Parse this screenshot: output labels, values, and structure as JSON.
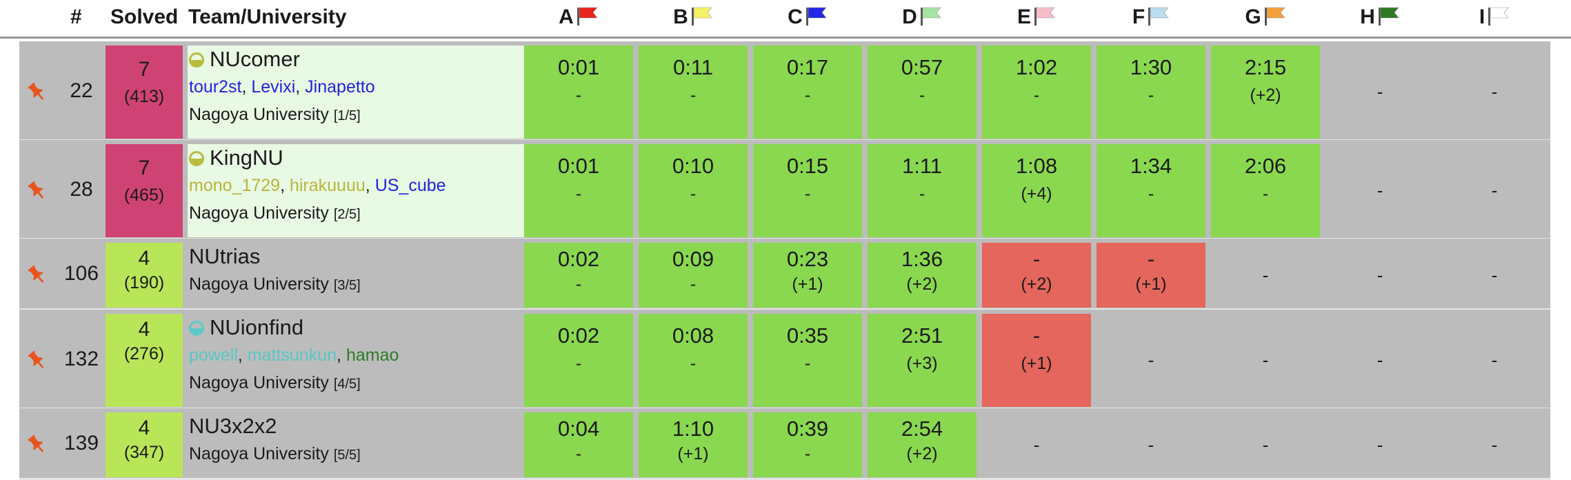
{
  "header": {
    "rank_label": "#",
    "solved_label": "Solved",
    "team_label": "Team/University",
    "problems": [
      {
        "letter": "A",
        "flag_color": "#e8241c"
      },
      {
        "letter": "B",
        "flag_color": "#f5f264"
      },
      {
        "letter": "C",
        "flag_color": "#2426e6"
      },
      {
        "letter": "D",
        "flag_color": "#a6e3a0"
      },
      {
        "letter": "E",
        "flag_color": "#f6bdc8"
      },
      {
        "letter": "F",
        "flag_color": "#bcdcef"
      },
      {
        "letter": "G",
        "flag_color": "#f4a03a"
      },
      {
        "letter": "H",
        "flag_color": "#2d7a22"
      },
      {
        "letter": "I",
        "flag_color": "#ffffff"
      }
    ]
  },
  "colors": {
    "row_bg": "#bcbcbc",
    "accepted": "#8ad84f",
    "wrong": "#e5665c",
    "solved_high": "#cf4374",
    "solved_mid": "#b9e658",
    "highlight_team_bg": "#e8f9e4",
    "pin": "#e8541e"
  },
  "rows": [
    {
      "rank": "22",
      "solved": "7",
      "penalty": "(413)",
      "team": "NUcomer",
      "icon": "rating-circle-icon",
      "icon_color": "#b8bc3e",
      "members": [
        {
          "name": "tour2st",
          "color": "#2222dd"
        },
        {
          "name": "Levixi",
          "color": "#2222dd"
        },
        {
          "name": "Jinapetto",
          "color": "#2222dd"
        }
      ],
      "university": "Nagoya University",
      "uni_rank": "[1/5]",
      "problems": [
        {
          "time": "0:01",
          "attempts": "-",
          "status": "ac"
        },
        {
          "time": "0:11",
          "attempts": "-",
          "status": "ac"
        },
        {
          "time": "0:17",
          "attempts": "-",
          "status": "ac"
        },
        {
          "time": "0:57",
          "attempts": "-",
          "status": "ac"
        },
        {
          "time": "1:02",
          "attempts": "-",
          "status": "ac"
        },
        {
          "time": "1:30",
          "attempts": "-",
          "status": "ac"
        },
        {
          "time": "2:15",
          "attempts": "(+2)",
          "status": "ac"
        },
        {
          "time": "-",
          "attempts": "",
          "status": "none"
        },
        {
          "time": "-",
          "attempts": "",
          "status": "none"
        }
      ]
    },
    {
      "rank": "28",
      "solved": "7",
      "penalty": "(465)",
      "team": "KingNU",
      "icon": "rating-circle-icon",
      "icon_color": "#b8bc3e",
      "members": [
        {
          "name": "mono_1729",
          "color": "#b9b53a"
        },
        {
          "name": "hirakuuuu",
          "color": "#b9b53a"
        },
        {
          "name": "US_cube",
          "color": "#2222dd"
        }
      ],
      "university": "Nagoya University",
      "uni_rank": "[2/5]",
      "problems": [
        {
          "time": "0:01",
          "attempts": "-",
          "status": "ac"
        },
        {
          "time": "0:10",
          "attempts": "-",
          "status": "ac"
        },
        {
          "time": "0:15",
          "attempts": "-",
          "status": "ac"
        },
        {
          "time": "1:11",
          "attempts": "-",
          "status": "ac"
        },
        {
          "time": "1:08",
          "attempts": "(+4)",
          "status": "ac"
        },
        {
          "time": "1:34",
          "attempts": "-",
          "status": "ac"
        },
        {
          "time": "2:06",
          "attempts": "-",
          "status": "ac"
        },
        {
          "time": "-",
          "attempts": "",
          "status": "none"
        },
        {
          "time": "-",
          "attempts": "",
          "status": "none"
        }
      ]
    },
    {
      "rank": "106",
      "solved": "4",
      "penalty": "(190)",
      "team": "NUtrias",
      "icon": "",
      "icon_color": "",
      "members": [],
      "university": "Nagoya University",
      "uni_rank": "[3/5]",
      "problems": [
        {
          "time": "0:02",
          "attempts": "-",
          "status": "ac"
        },
        {
          "time": "0:09",
          "attempts": "-",
          "status": "ac"
        },
        {
          "time": "0:23",
          "attempts": "(+1)",
          "status": "ac"
        },
        {
          "time": "1:36",
          "attempts": "(+2)",
          "status": "ac"
        },
        {
          "time": "-",
          "attempts": "(+2)",
          "status": "wa"
        },
        {
          "time": "-",
          "attempts": "(+1)",
          "status": "wa"
        },
        {
          "time": "-",
          "attempts": "",
          "status": "none"
        },
        {
          "time": "-",
          "attempts": "",
          "status": "none"
        },
        {
          "time": "-",
          "attempts": "",
          "status": "none"
        }
      ]
    },
    {
      "rank": "132",
      "solved": "4",
      "penalty": "(276)",
      "team": "NUionfind",
      "icon": "rating-circle-icon",
      "icon_color": "#5fc9c9",
      "members": [
        {
          "name": "powell",
          "color": "#59c6c6"
        },
        {
          "name": "mattsunkun",
          "color": "#59c6c6"
        },
        {
          "name": "hamao",
          "color": "#2e7a2a"
        }
      ],
      "university": "Nagoya University",
      "uni_rank": "[4/5]",
      "problems": [
        {
          "time": "0:02",
          "attempts": "-",
          "status": "ac"
        },
        {
          "time": "0:08",
          "attempts": "-",
          "status": "ac"
        },
        {
          "time": "0:35",
          "attempts": "-",
          "status": "ac"
        },
        {
          "time": "2:51",
          "attempts": "(+3)",
          "status": "ac"
        },
        {
          "time": "-",
          "attempts": "(+1)",
          "status": "wa"
        },
        {
          "time": "-",
          "attempts": "",
          "status": "none"
        },
        {
          "time": "-",
          "attempts": "",
          "status": "none"
        },
        {
          "time": "-",
          "attempts": "",
          "status": "none"
        },
        {
          "time": "-",
          "attempts": "",
          "status": "none"
        }
      ]
    },
    {
      "rank": "139",
      "solved": "4",
      "penalty": "(347)",
      "team": "NU3x2x2",
      "icon": "",
      "icon_color": "",
      "members": [],
      "university": "Nagoya University",
      "uni_rank": "[5/5]",
      "problems": [
        {
          "time": "0:04",
          "attempts": "-",
          "status": "ac"
        },
        {
          "time": "1:10",
          "attempts": "(+1)",
          "status": "ac"
        },
        {
          "time": "0:39",
          "attempts": "-",
          "status": "ac"
        },
        {
          "time": "2:54",
          "attempts": "(+2)",
          "status": "ac"
        },
        {
          "time": "-",
          "attempts": "",
          "status": "none"
        },
        {
          "time": "-",
          "attempts": "",
          "status": "none"
        },
        {
          "time": "-",
          "attempts": "",
          "status": "none"
        },
        {
          "time": "-",
          "attempts": "",
          "status": "none"
        },
        {
          "time": "-",
          "attempts": "",
          "status": "none"
        }
      ]
    }
  ]
}
